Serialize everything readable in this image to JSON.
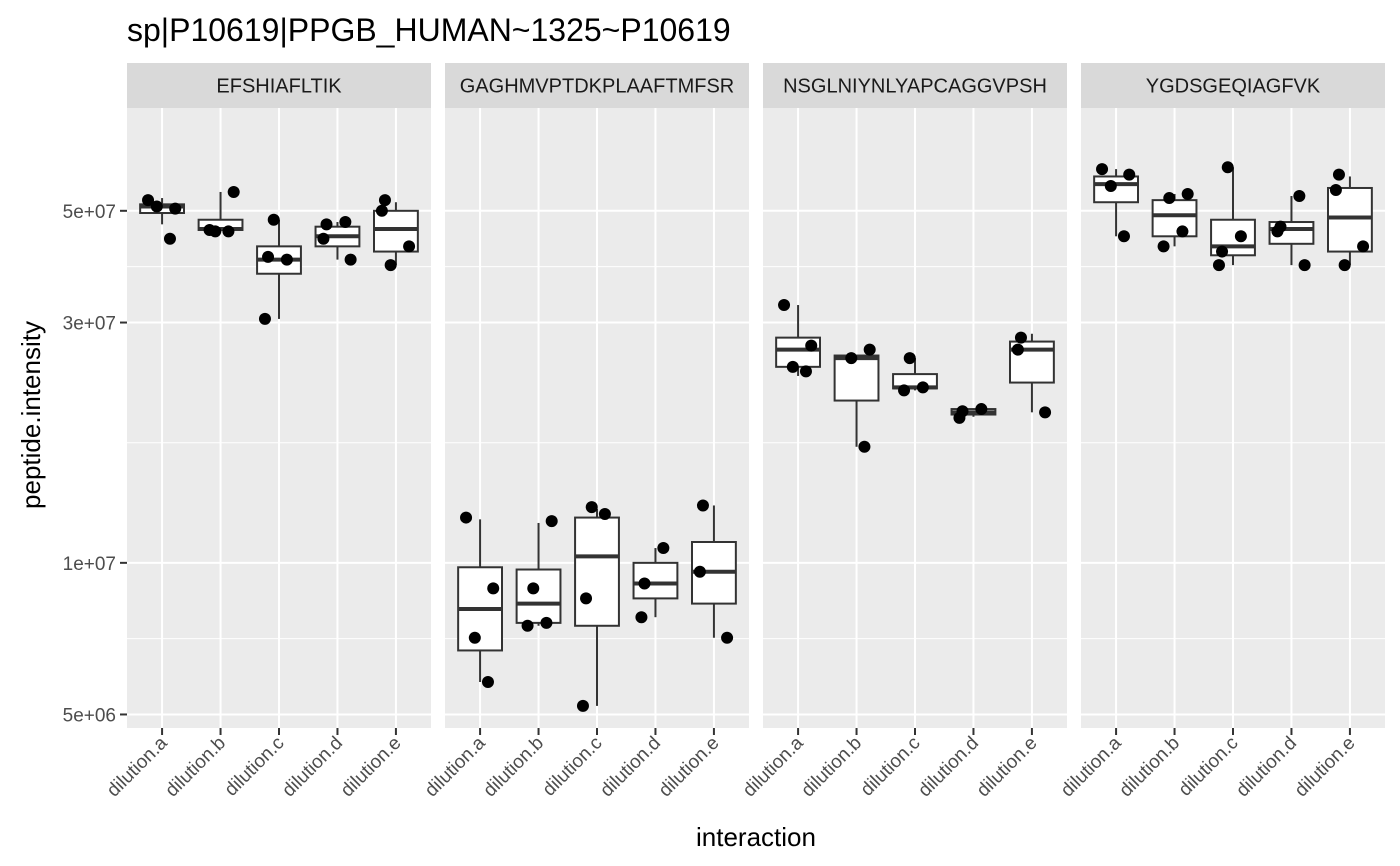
{
  "chart_data": {
    "type": "boxplot",
    "title": "sp|P10619|PPGB_HUMAN~1325~P10619",
    "xlabel": "interaction",
    "ylabel": "peptide.intensity",
    "y_scale": "log10",
    "y_ticks": [
      {
        "value": 5000000,
        "label": "5e+06"
      },
      {
        "value": 10000000,
        "label": "1e+07"
      },
      {
        "value": 30000000,
        "label": "3e+07"
      },
      {
        "value": 50000000,
        "label": "5e+07"
      }
    ],
    "y_minor_ticks": [
      7071068,
      17320508,
      38729833
    ],
    "ylim": [
      4700000,
      80000000
    ],
    "categories": [
      "dilution.a",
      "dilution.b",
      "dilution.c",
      "dilution.d",
      "dilution.e"
    ],
    "panels": [
      {
        "label": "EFSHIAFLTIK",
        "boxes": [
          {
            "category": "dilution.a",
            "lower": 47000000,
            "q1": 49500000,
            "median": 51000000,
            "q3": 51500000,
            "upper": 53000000,
            "points": [
              52500000,
              50500000,
              51000000,
              44000000
            ]
          },
          {
            "category": "dilution.b",
            "lower": 45500000,
            "q1": 45800000,
            "median": 46000000,
            "q3": 48000000,
            "upper": 54500000,
            "points": [
              54500000,
              45500000,
              45500000,
              45800000
            ]
          },
          {
            "category": "dilution.c",
            "lower": 30500000,
            "q1": 37500000,
            "median": 40000000,
            "q3": 42500000,
            "upper": 48000000,
            "points": [
              48000000,
              40000000,
              40500000,
              30500000
            ]
          },
          {
            "category": "dilution.d",
            "lower": 40000000,
            "q1": 42500000,
            "median": 44500000,
            "q3": 46500000,
            "upper": 47500000,
            "points": [
              47500000,
              47000000,
              44000000,
              40000000
            ]
          },
          {
            "category": "dilution.e",
            "lower": 39000000,
            "q1": 41500000,
            "median": 46000000,
            "q3": 50000000,
            "upper": 52000000,
            "points": [
              52500000,
              50000000,
              42500000,
              39000000
            ]
          }
        ]
      },
      {
        "label": "GAGHMVPTDKPLAAFTMFSR",
        "boxes": [
          {
            "category": "dilution.a",
            "lower": 5800000,
            "q1": 6700000,
            "median": 8100000,
            "q3": 9800000,
            "upper": 12200000,
            "points": [
              12300000,
              8900000,
              7100000,
              5800000
            ]
          },
          {
            "category": "dilution.b",
            "lower": 7500000,
            "q1": 7600000,
            "median": 8300000,
            "q3": 9700000,
            "upper": 12000000,
            "points": [
              12100000,
              8900000,
              7600000,
              7500000
            ]
          },
          {
            "category": "dilution.c",
            "lower": 5200000,
            "q1": 7500000,
            "median": 10300000,
            "q3": 12300000,
            "upper": 12800000,
            "points": [
              12900000,
              12500000,
              8500000,
              5200000
            ]
          },
          {
            "category": "dilution.d",
            "lower": 7800000,
            "q1": 8500000,
            "median": 9100000,
            "q3": 10000000,
            "upper": 10700000,
            "points": [
              10700000,
              9100000,
              7800000
            ]
          },
          {
            "category": "dilution.e",
            "lower": 7100000,
            "q1": 8300000,
            "median": 9600000,
            "q3": 11000000,
            "upper": 13000000,
            "points": [
              13000000,
              9600000,
              7100000
            ]
          }
        ]
      },
      {
        "label": "NSGLNIYNLYAPCAGGVPSH",
        "boxes": [
          {
            "category": "dilution.a",
            "lower": 23500000,
            "q1": 24500000,
            "median": 26500000,
            "q3": 28000000,
            "upper": 32500000,
            "points": [
              32500000,
              27000000,
              24500000,
              24000000
            ]
          },
          {
            "category": "dilution.b",
            "lower": 17000000,
            "q1": 21000000,
            "median": 25500000,
            "q3": 25800000,
            "upper": 25800000,
            "points": [
              26500000,
              25500000,
              17000000
            ]
          },
          {
            "category": "dilution.c",
            "lower": 22000000,
            "q1": 22200000,
            "median": 22300000,
            "q3": 23700000,
            "upper": 25500000,
            "points": [
              25500000,
              22300000,
              22000000
            ]
          },
          {
            "category": "dilution.d",
            "lower": 19500000,
            "q1": 19700000,
            "median": 19900000,
            "q3": 20200000,
            "upper": 20200000,
            "points": [
              20200000,
              20000000,
              19400000
            ]
          },
          {
            "category": "dilution.e",
            "lower": 19900000,
            "q1": 22800000,
            "median": 26500000,
            "q3": 27500000,
            "upper": 28500000,
            "points": [
              28000000,
              26500000,
              19900000
            ]
          }
        ]
      },
      {
        "label": "YGDSGEQIAGFVK",
        "boxes": [
          {
            "category": "dilution.a",
            "lower": 44500000,
            "q1": 52000000,
            "median": 56500000,
            "q3": 58500000,
            "upper": 60500000,
            "points": [
              60500000,
              59000000,
              56000000,
              44500000
            ]
          },
          {
            "category": "dilution.b",
            "lower": 42500000,
            "q1": 44500000,
            "median": 49000000,
            "q3": 52500000,
            "upper": 54000000,
            "points": [
              54000000,
              53000000,
              45500000,
              42500000
            ]
          },
          {
            "category": "dilution.c",
            "lower": 39000000,
            "q1": 40800000,
            "median": 42500000,
            "q3": 48000000,
            "upper": 61000000,
            "points": [
              61000000,
              44500000,
              41500000,
              39000000
            ]
          },
          {
            "category": "dilution.d",
            "lower": 39000000,
            "q1": 43000000,
            "median": 46000000,
            "q3": 47500000,
            "upper": 53500000,
            "points": [
              53500000,
              46500000,
              45500000,
              39000000
            ]
          },
          {
            "category": "dilution.e",
            "lower": 39000000,
            "q1": 41500000,
            "median": 48500000,
            "q3": 55500000,
            "upper": 58500000,
            "points": [
              59000000,
              55000000,
              42500000,
              39000000
            ]
          }
        ]
      }
    ]
  }
}
